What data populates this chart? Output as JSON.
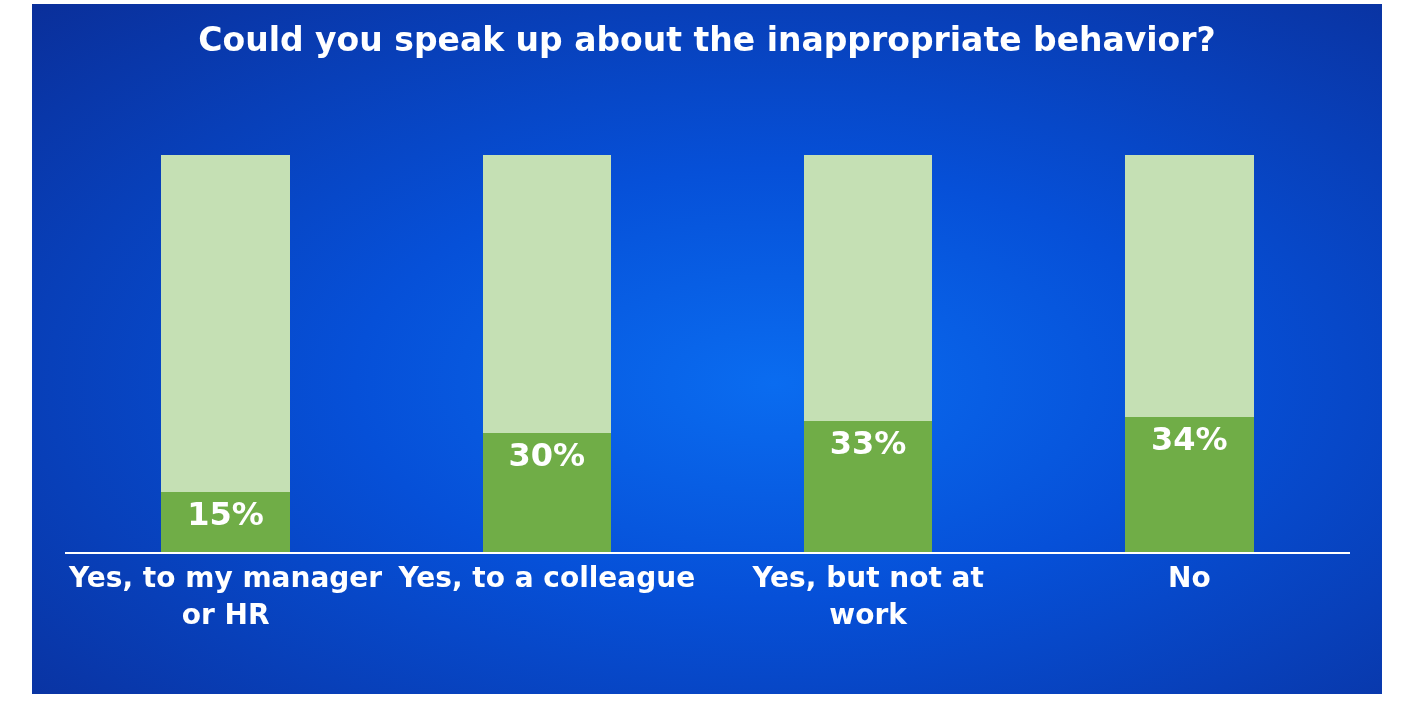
{
  "chart_data": {
    "type": "bar",
    "title": "Could you speak up about the inappropriate behavior?",
    "categories": [
      "Yes, to my manager or HR",
      "Yes, to a colleague",
      "Yes, but not at work",
      "No"
    ],
    "stacked": true,
    "ylim": [
      0,
      100
    ],
    "tick_labels": "x",
    "series": [
      {
        "color": "#70ad47",
        "values": [
          15,
          30,
          33,
          34
        ],
        "value_labels": [
          "15%",
          "30%",
          "33%",
          "34%"
        ]
      },
      {
        "color": "#c5e0b4",
        "values": [
          85,
          70,
          67,
          66
        ]
      }
    ]
  }
}
